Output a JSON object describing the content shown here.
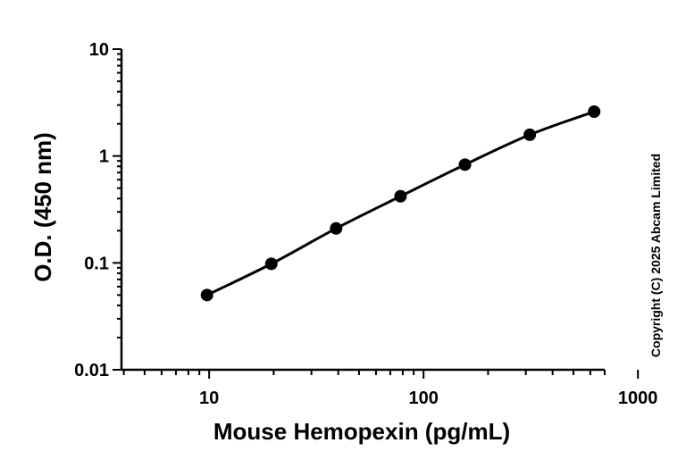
{
  "chart_data": {
    "type": "scatter",
    "xlabel": "Mouse Hemopexin (pg/mL)",
    "ylabel": "O.D. (450 nm)",
    "x_scale": "log",
    "y_scale": "log",
    "xlim": [
      3.9,
      700
    ],
    "ylim": [
      0.01,
      10
    ],
    "x_ticks": [
      10,
      100,
      1000
    ],
    "x_tick_labels": [
      "10",
      "100",
      "1000"
    ],
    "y_ticks": [
      0.01,
      0.1,
      1,
      10
    ],
    "y_tick_labels": [
      "0.01",
      "0.1",
      "1",
      "10"
    ],
    "grid": false,
    "legend": "none",
    "series": [
      {
        "x": [
          9.77,
          19.5,
          39.1,
          78.1,
          156,
          313,
          625
        ],
        "y": [
          0.05,
          0.098,
          0.21,
          0.42,
          0.83,
          1.58,
          2.6
        ],
        "marker": "circle",
        "fit_line": true,
        "color": "#000000"
      }
    ]
  },
  "copyright": "Copyright (C) 2025 Abcam Limited"
}
